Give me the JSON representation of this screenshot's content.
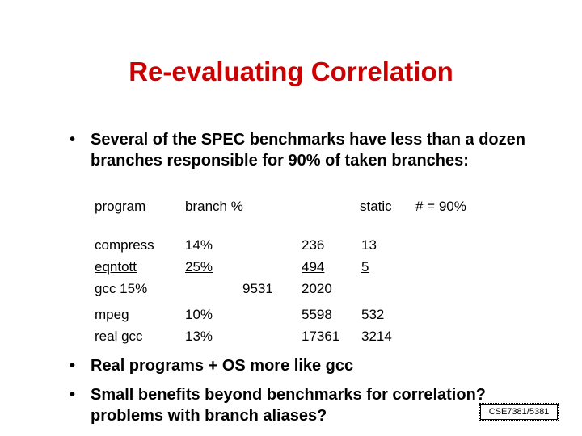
{
  "slide": {
    "title": "Re-evaluating Correlation",
    "bullets": [
      "Several of the SPEC benchmarks have less than a dozen branches responsible for 90% of taken branches:",
      "Real programs + OS more like gcc",
      "Small benefits beyond benchmarks for correlation? problems with branch aliases?"
    ],
    "bullet_marker": "•",
    "table": {
      "headers": [
        "program",
        "branch %",
        "static",
        "# = 90%"
      ],
      "rows": [
        {
          "program": "compress",
          "branch": "14%",
          "static": "236",
          "n90": "13"
        },
        {
          "program": "eqntott",
          "branch": "25%",
          "static": "494",
          "n90": "5"
        },
        {
          "program": "gcc 15%",
          "branch": "9531",
          "static": "2020",
          "n90": ""
        },
        {
          "program": "mpeg",
          "branch": "10%",
          "static": "5598",
          "n90": "532"
        },
        {
          "program": "real gcc",
          "branch": "13%",
          "static": "17361",
          "n90": "3214"
        }
      ]
    },
    "footer": "CSE7381/5381",
    "colors": {
      "title": "#cc0000",
      "text": "#000000",
      "background": "#ffffff"
    }
  }
}
